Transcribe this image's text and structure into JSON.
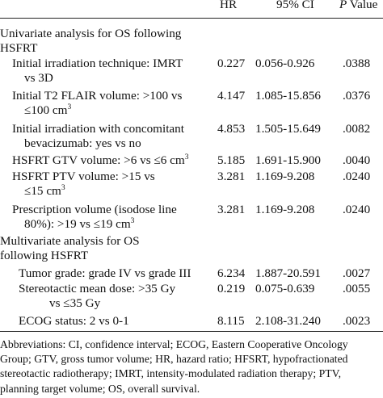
{
  "header": {
    "hr": "HR",
    "ci": "95% CI",
    "p_italic": "P",
    "p_rest": " Value"
  },
  "sections": [
    {
      "title_lines": [
        "Univariate analysis for OS following",
        "HSFRT"
      ]
    },
    {
      "title_lines": [
        "Multivariate analysis for OS",
        "following HSFRT"
      ]
    }
  ],
  "rows": [
    {
      "lines": [
        "Initial irradiation technique: IMRT",
        "vs 3D"
      ],
      "hr": "0.227",
      "ci": "0.056-0.926",
      "p": ".0388"
    },
    {
      "lines": [
        "Initial T2 FLAIR volume: >100 vs",
        "≤100 cm"
      ],
      "sup": "3",
      "hr": "4.147",
      "ci": "1.085-15.856",
      "p": ".0376"
    },
    {
      "lines": [
        "Initial irradiation with concomitant",
        "bevacizumab: yes vs no"
      ],
      "hr": "4.853",
      "ci": "1.505-15.649",
      "p": ".0082"
    },
    {
      "lines": [
        "HSFRT GTV volume: >6 vs ≤6 cm"
      ],
      "sup": "3",
      "hr": "5.185",
      "ci": "1.691-15.900",
      "p": ".0040"
    },
    {
      "lines": [
        "HSFRT PTV volume: >15 vs",
        "≤15 cm"
      ],
      "sup": "3",
      "hr": "3.281",
      "ci": "1.169-9.208",
      "p": ".0240"
    },
    {
      "lines": [
        "Prescription volume (isodose line",
        "80%): >19 vs ≤19 cm"
      ],
      "sup": "3",
      "hr": "3.281",
      "ci": "1.169-9.208",
      "p": ".0240"
    },
    {
      "lines": [
        "Tumor grade: grade IV vs grade III"
      ],
      "hr": "6.234",
      "ci": "1.887-20.591",
      "p": ".0027"
    },
    {
      "lines": [
        "Stereotactic mean dose: >35 Gy",
        "vs ≤35 Gy"
      ],
      "hr": "0.219",
      "ci": "0.075-0.639",
      "p": ".0055"
    },
    {
      "lines": [
        "ECOG status: 2 vs 0-1"
      ],
      "hr": "8.115",
      "ci": "2.108-31.240",
      "p": ".0023"
    }
  ],
  "footnote": [
    "Abbreviations: CI, confidence interval; ECOG, Eastern Cooperative Oncology",
    "Group; GTV, gross tumor volume; HR, hazard ratio; HFSRT, hypofractionated",
    "stereotactic radiotherapy; IMRT, intensity-modulated radiation therapy; PTV,",
    "planning target volume; OS, overall survival."
  ]
}
